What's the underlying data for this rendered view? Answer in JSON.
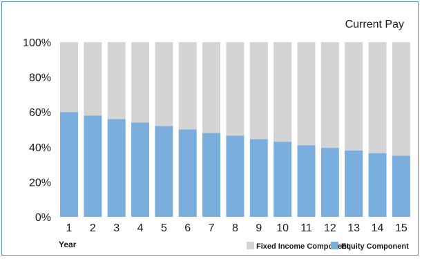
{
  "chart_data": {
    "type": "bar",
    "stacked": true,
    "title": "Current Pay",
    "xlabel": "Year",
    "ylabel": "",
    "ylim": [
      0,
      100
    ],
    "y_ticks": [
      "0%",
      "20%",
      "40%",
      "60%",
      "80%",
      "100%"
    ],
    "y_tick_values": [
      0,
      20,
      40,
      60,
      80,
      100
    ],
    "categories": [
      "1",
      "2",
      "3",
      "4",
      "5",
      "6",
      "7",
      "8",
      "9",
      "10",
      "11",
      "12",
      "13",
      "14",
      "15"
    ],
    "series": [
      {
        "name": "Equity Component",
        "color": "#7aaedd",
        "values": [
          60,
          58,
          56,
          54,
          52,
          50,
          48,
          46.5,
          44.5,
          43,
          41,
          39.5,
          38,
          36.5,
          35
        ]
      },
      {
        "name": "Fixed Income Component",
        "color": "#d4d4d4",
        "values": [
          40,
          42,
          44,
          46,
          48,
          50,
          52,
          53.5,
          55.5,
          57,
          59,
          60.5,
          62,
          63.5,
          65
        ]
      }
    ],
    "legend": {
      "placement": "bottom-right",
      "order": [
        "Fixed Income Component",
        "Equity Component"
      ]
    },
    "grid": false
  }
}
